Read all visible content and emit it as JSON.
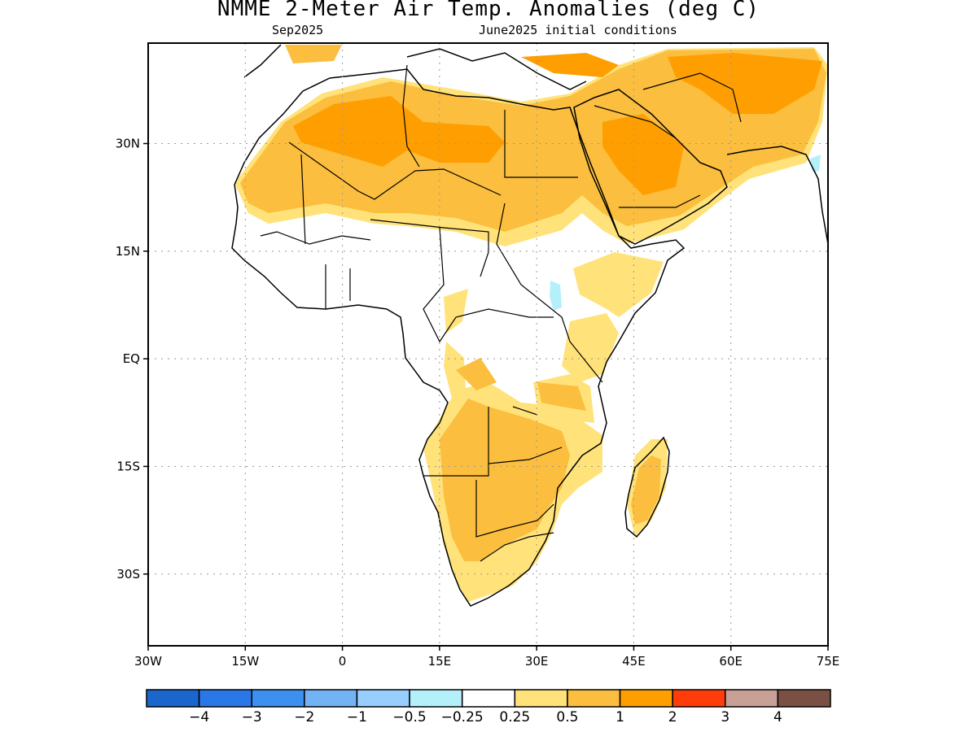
{
  "title": "NMME 2-Meter Air Temp. Anomalies (deg C)",
  "subtitle_left": "Sep2025",
  "subtitle_right": "June2025 initial conditions",
  "map": {
    "region": "Africa",
    "lon_range": [
      -30,
      75
    ],
    "lat_range": [
      -40,
      44
    ],
    "gridlines": true,
    "grid_style": "dotted"
  },
  "axes": {
    "x_ticks": [
      {
        "value": -30,
        "label": "30W"
      },
      {
        "value": -15,
        "label": "15W"
      },
      {
        "value": 0,
        "label": "0"
      },
      {
        "value": 15,
        "label": "15E"
      },
      {
        "value": 30,
        "label": "30E"
      },
      {
        "value": 45,
        "label": "45E"
      },
      {
        "value": 60,
        "label": "60E"
      },
      {
        "value": 75,
        "label": "75E"
      }
    ],
    "y_ticks": [
      {
        "value": 30,
        "label": "30N"
      },
      {
        "value": 15,
        "label": "15N"
      },
      {
        "value": 0,
        "label": "EQ"
      },
      {
        "value": -15,
        "label": "15S"
      },
      {
        "value": -30,
        "label": "30S"
      }
    ]
  },
  "colorbar": {
    "colors": [
      "#1a66cc",
      "#2a78e8",
      "#3d90f0",
      "#73b2f4",
      "#98ceff",
      "#b4f0fa",
      "#ffffff",
      "#ffe27a",
      "#fbbe3e",
      "#ff9e00",
      "#ff3c0a",
      "#c8a096",
      "#7a5044"
    ],
    "labels": [
      "-4",
      "-3",
      "-2",
      "-1",
      "-0.5",
      "-0.25",
      "0.25",
      "0.5",
      "1",
      "2",
      "3",
      "4"
    ]
  },
  "colors": {
    "coastline": "#000000",
    "lake_blue": "#b4f0fa"
  }
}
